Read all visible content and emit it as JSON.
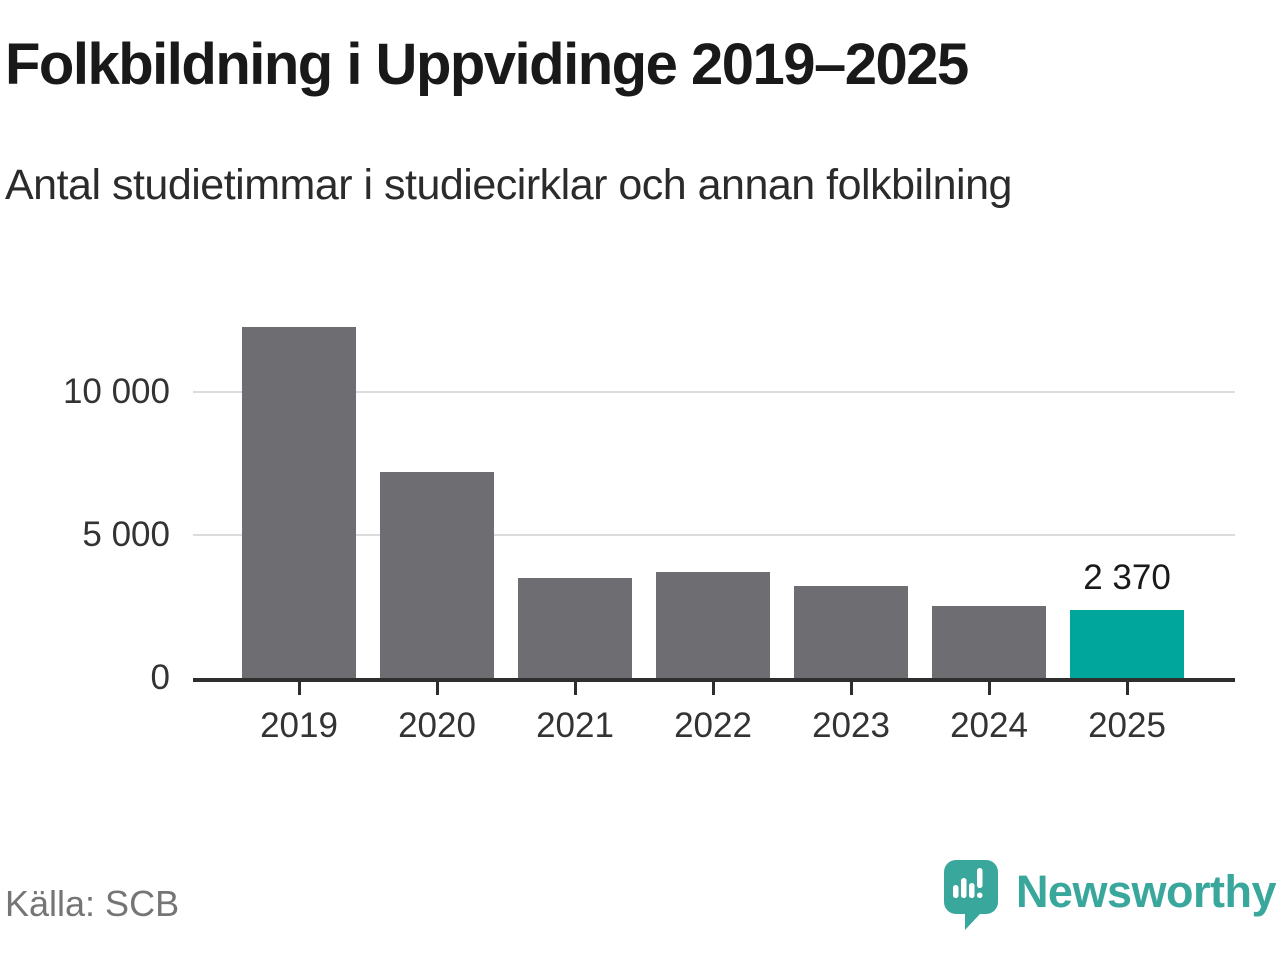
{
  "header": {
    "title": "Folkbildning i Uppvidinge 2019–2025",
    "subtitle": "Antal studietimmar i studiecirklar och annan folkbilning"
  },
  "chart_data": {
    "type": "bar",
    "title": "Folkbildning i Uppvidinge 2019–2025",
    "subtitle": "Antal studietimmar i studiecirklar och annan folkbilning",
    "categories": [
      "2019",
      "2020",
      "2021",
      "2022",
      "2023",
      "2024",
      "2025"
    ],
    "values": [
      12250,
      7200,
      3500,
      3700,
      3200,
      2500,
      2370
    ],
    "highlight_index": 6,
    "annotation": {
      "index": 6,
      "text": "2 370"
    },
    "yticks": [
      {
        "value": 0,
        "label": "0"
      },
      {
        "value": 5000,
        "label": "5 000"
      },
      {
        "value": 10000,
        "label": "10 000"
      }
    ],
    "ylim": [
      0,
      13900
    ],
    "grid": "horizontal",
    "legend": "none"
  },
  "footer": {
    "source": "Källa: SCB",
    "brand_name": "Newsworthy",
    "logo_icon": "newsworthy-speech-bubble-chart-icon"
  },
  "colors": {
    "bar_gray": "#6e6e72",
    "bar_highlight": "#00a69c",
    "grid": "#dcdcdc",
    "axis_line": "#2e2e2e",
    "title_text": "#191919",
    "subtitle_text": "#2b2b2b",
    "axis_text": "#333333",
    "source_text": "#757575",
    "brand_teal": "#3aa79d"
  }
}
